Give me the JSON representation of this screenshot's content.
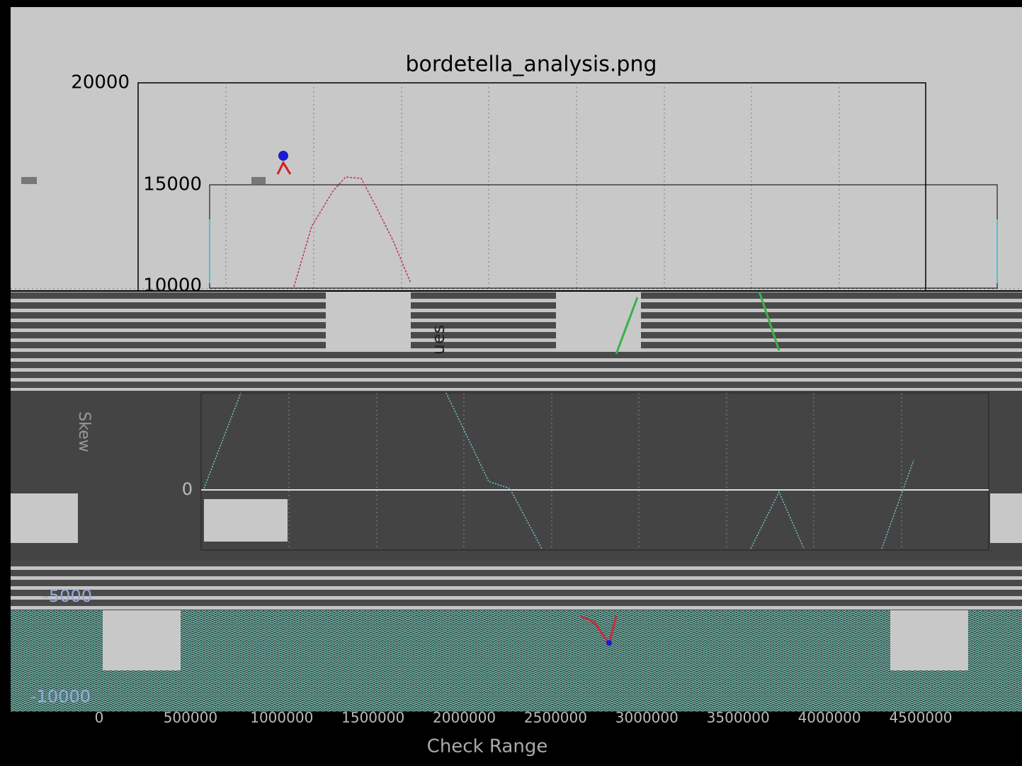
{
  "window": {
    "title": "bordetella_analysis.png",
    "y_tick_labels": [
      "20000",
      "15000",
      "10000",
      "0",
      "-5000",
      "-10000"
    ],
    "panel_labels": [
      "ues",
      "Skew"
    ],
    "x_tick_labels": [
      "0",
      "500000",
      "1000000",
      "1500000",
      "2000000",
      "2500000",
      "3000000",
      "3500000",
      "4000000",
      "4500000"
    ],
    "x_axis_label": "Check Range"
  }
}
